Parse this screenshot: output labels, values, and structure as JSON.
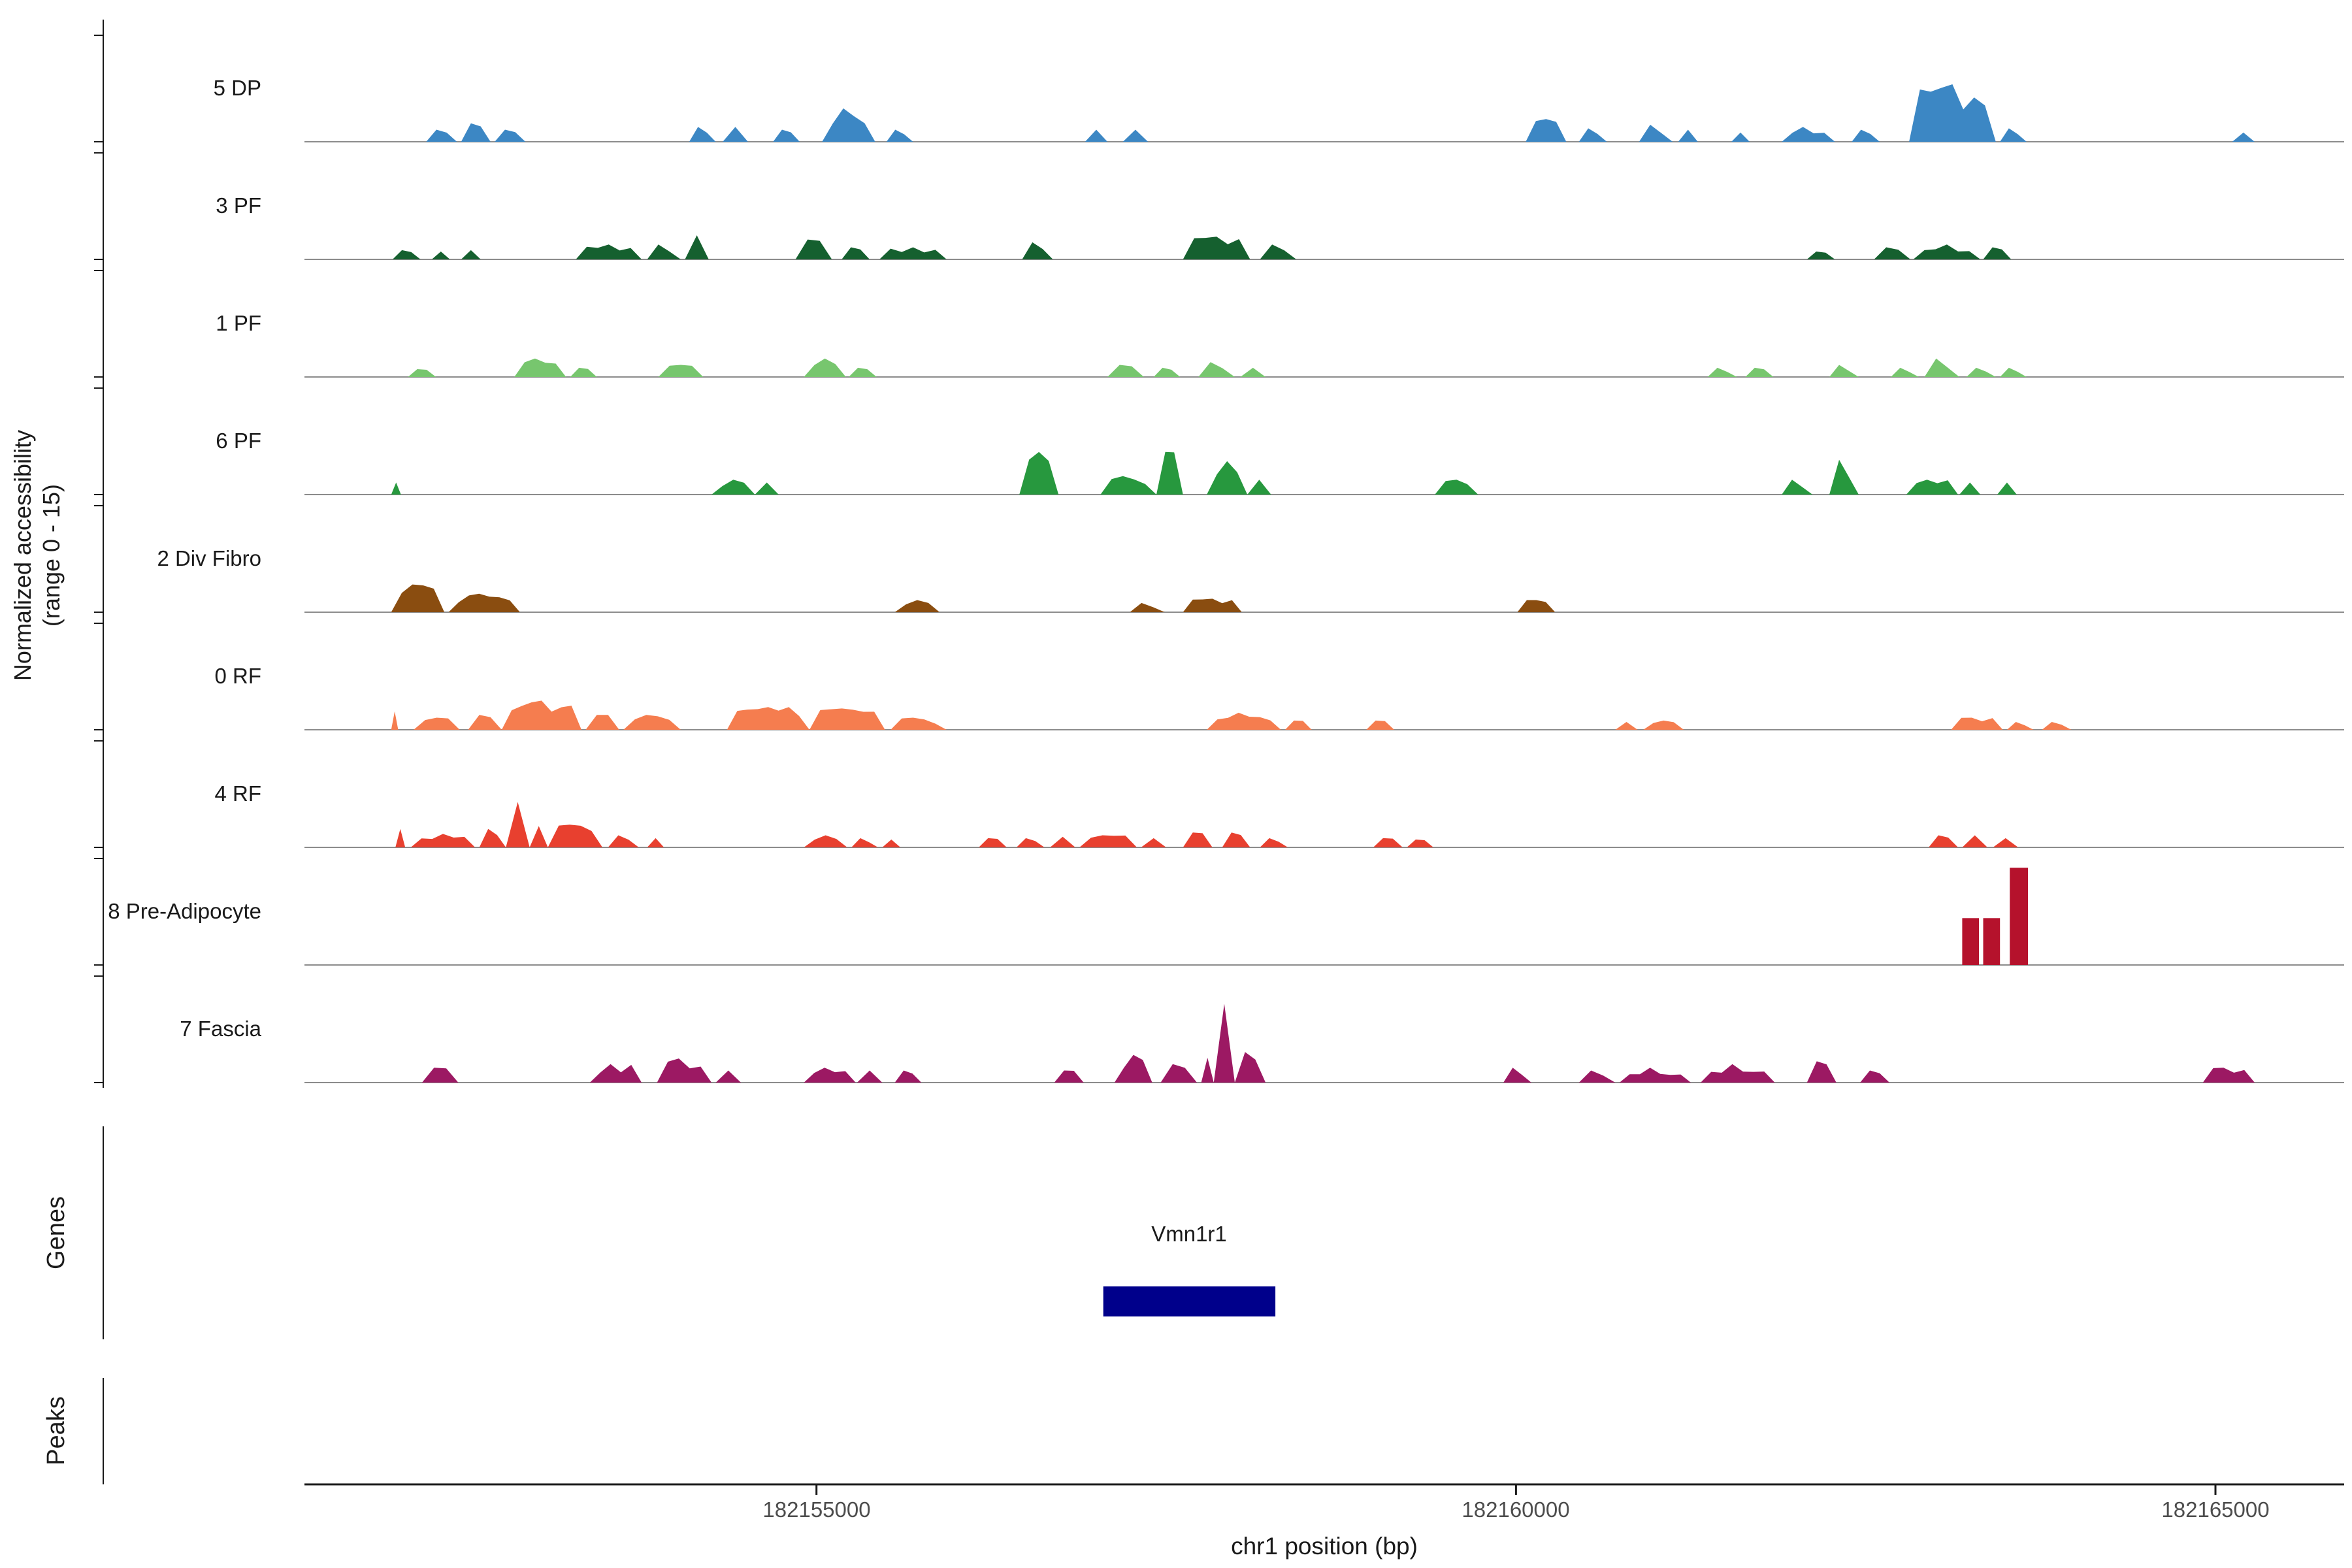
{
  "chart_data": {
    "type": "area",
    "title": "",
    "x_axis": {
      "label": "chr1 position (bp)",
      "min": 182151340,
      "max": 182165920,
      "ticks": [
        182155000,
        182160000,
        182165000
      ],
      "tick_labels": [
        "182155000",
        "182160000",
        "182165000"
      ]
    },
    "y_axis": {
      "label": "Normalized accessibility (range 0 - 15)",
      "label_lines": [
        "Normalized accessibility",
        "(range 0 - 15)"
      ],
      "per_track_range": [
        0,
        15
      ]
    },
    "colors": {
      "axis": "#1a1a1a",
      "baseline": "#8c8c8c"
    },
    "tracks": [
      {
        "label": "5 DP",
        "color": "#3c87c4",
        "style": "ragged",
        "segments": [
          [
            182152210,
            182152430,
            1.7
          ],
          [
            182152460,
            182152670,
            2.6
          ],
          [
            182152700,
            182152920,
            1.7
          ],
          [
            182154090,
            182154280,
            2.1
          ],
          [
            182154330,
            182154510,
            2.1
          ],
          [
            182154690,
            182154880,
            1.7
          ],
          [
            182155040,
            182155420,
            4.7
          ],
          [
            182155500,
            182155690,
            1.7
          ],
          [
            182156920,
            182157080,
            1.7
          ],
          [
            182157190,
            182157370,
            1.7
          ],
          [
            182160070,
            182160360,
            3.2
          ],
          [
            182160450,
            182160650,
            1.9
          ],
          [
            182160880,
            182161120,
            2.4
          ],
          [
            182161160,
            182161300,
            1.7
          ],
          [
            182161540,
            182161670,
            1.3
          ],
          [
            182161900,
            182162280,
            2.1
          ],
          [
            182162400,
            182162600,
            1.7
          ],
          [
            182162810,
            182163430,
            8.1
          ],
          [
            182163460,
            182163650,
            1.9
          ],
          [
            182165120,
            182165280,
            1.3
          ]
        ]
      },
      {
        "label": "3 PF",
        "color": "#15602f",
        "style": "ragged",
        "segments": [
          [
            182151970,
            182152170,
            1.3
          ],
          [
            182152250,
            182152380,
            1.1
          ],
          [
            182152460,
            182152600,
            1.3
          ],
          [
            182153280,
            182153750,
            2.1
          ],
          [
            182153790,
            182154030,
            2.1
          ],
          [
            182154060,
            182154230,
            3.4
          ],
          [
            182154850,
            182155110,
            2.8
          ],
          [
            182155180,
            182155380,
            1.7
          ],
          [
            182155450,
            182155930,
            1.7
          ],
          [
            182156470,
            182156690,
            2.4
          ],
          [
            182157620,
            182158100,
            3.2
          ],
          [
            182158170,
            182158430,
            2.1
          ],
          [
            182162080,
            182162280,
            1.1
          ],
          [
            182162560,
            182162820,
            1.7
          ],
          [
            182162840,
            182163320,
            2.1
          ],
          [
            182163340,
            182163540,
            1.7
          ]
        ]
      },
      {
        "label": "1 PF",
        "color": "#77c66e",
        "style": "ragged",
        "segments": [
          [
            182152080,
            182152280,
            1.1
          ],
          [
            182152840,
            182153210,
            2.6
          ],
          [
            182153240,
            182153430,
            1.3
          ],
          [
            182153870,
            182154190,
            1.7
          ],
          [
            182154910,
            182155210,
            2.6
          ],
          [
            182155230,
            182155430,
            1.3
          ],
          [
            182157080,
            182157340,
            1.7
          ],
          [
            182157410,
            182157600,
            1.3
          ],
          [
            182157730,
            182157990,
            2.1
          ],
          [
            182158030,
            182158210,
            1.3
          ],
          [
            182161370,
            182161580,
            1.3
          ],
          [
            182161640,
            182161840,
            1.3
          ],
          [
            182162240,
            182162450,
            1.7
          ],
          [
            182162680,
            182162880,
            1.3
          ],
          [
            182162920,
            182163170,
            2.6
          ],
          [
            182163220,
            182163430,
            1.3
          ],
          [
            182163460,
            182163650,
            1.3
          ]
        ]
      },
      {
        "label": "6 PF",
        "color": "#27983e",
        "style": "ragged",
        "segments": [
          [
            182151960,
            182152030,
            1.7
          ],
          [
            182154250,
            182154560,
            2.1
          ],
          [
            182154560,
            182154730,
            1.7
          ],
          [
            182156450,
            182156730,
            6.0
          ],
          [
            182157030,
            182157430,
            2.6
          ],
          [
            182157430,
            182157620,
            6.0
          ],
          [
            182157790,
            182158080,
            4.7
          ],
          [
            182158080,
            182158250,
            2.1
          ],
          [
            182159420,
            182159730,
            2.1
          ],
          [
            182161900,
            182162120,
            2.1
          ],
          [
            182162240,
            182162450,
            4.9
          ],
          [
            182162790,
            182163160,
            2.1
          ],
          [
            182163170,
            182163320,
            1.7
          ],
          [
            182163440,
            182163580,
            1.7
          ]
        ]
      },
      {
        "label": "2 Div Fibro",
        "color": "#8a4d10",
        "style": "ragged",
        "segments": [
          [
            182151960,
            182152340,
            3.9
          ],
          [
            182152370,
            182152880,
            2.6
          ],
          [
            182155560,
            182155880,
            1.7
          ],
          [
            182157240,
            182157490,
            1.3
          ],
          [
            182157620,
            182158040,
            1.9
          ],
          [
            182160010,
            182160280,
            1.7
          ]
        ]
      },
      {
        "label": "0 RF",
        "color": "#f57d4f",
        "style": "ragged",
        "segments": [
          [
            182151960,
            182152010,
            2.6
          ],
          [
            182152120,
            182152450,
            1.7
          ],
          [
            182152510,
            182152750,
            2.1
          ],
          [
            182152750,
            182153320,
            4.1
          ],
          [
            182153350,
            182153590,
            2.1
          ],
          [
            182153620,
            182154030,
            2.1
          ],
          [
            182154360,
            182154950,
            3.2
          ],
          [
            182154950,
            182155490,
            3.0
          ],
          [
            182155530,
            182155930,
            1.7
          ],
          [
            182157790,
            182158320,
            2.4
          ],
          [
            182158350,
            182158540,
            1.3
          ],
          [
            182158930,
            182159130,
            1.3
          ],
          [
            182160710,
            182160870,
            1.1
          ],
          [
            182160910,
            182161200,
            1.3
          ],
          [
            182163110,
            182163480,
            1.7
          ],
          [
            182163510,
            182163700,
            1.1
          ],
          [
            182163760,
            182163970,
            1.1
          ]
        ]
      },
      {
        "label": "4 RF",
        "color": "#e8402f",
        "style": "ragged",
        "segments": [
          [
            182151990,
            182152060,
            2.6
          ],
          [
            182152100,
            182152560,
            1.9
          ],
          [
            182152590,
            182152780,
            2.6
          ],
          [
            182152780,
            182152950,
            6.4
          ],
          [
            182152950,
            182153080,
            3.0
          ],
          [
            182153080,
            182153470,
            3.2
          ],
          [
            182153510,
            182153730,
            1.7
          ],
          [
            182153790,
            182153910,
            1.3
          ],
          [
            182154910,
            182155220,
            1.7
          ],
          [
            182155250,
            182155440,
            1.3
          ],
          [
            182155470,
            182155600,
            1.1
          ],
          [
            182156160,
            182156360,
            1.3
          ],
          [
            182156430,
            182156630,
            1.3
          ],
          [
            182156670,
            182156850,
            1.5
          ],
          [
            182156880,
            182157290,
            1.7
          ],
          [
            182157320,
            182157500,
            1.3
          ],
          [
            182157620,
            182157830,
            2.1
          ],
          [
            182157900,
            182158100,
            2.1
          ],
          [
            182158170,
            182158370,
            1.3
          ],
          [
            182158980,
            182159190,
            1.3
          ],
          [
            182159220,
            182159410,
            1.1
          ],
          [
            182162950,
            182163160,
            1.7
          ],
          [
            182163190,
            182163370,
            1.7
          ],
          [
            182163410,
            182163590,
            1.3
          ]
        ]
      },
      {
        "label": "8 Pre-Adipocyte",
        "color": "#b5122c",
        "style": "bar",
        "segments": [
          [
            182163190,
            182163310,
            6.6
          ],
          [
            182163340,
            182163460,
            6.6
          ],
          [
            182163530,
            182163660,
            13.7
          ]
        ]
      },
      {
        "label": "7 Fascia",
        "color": "#9c1963",
        "style": "ragged",
        "segments": [
          [
            182152180,
            182152440,
            2.1
          ],
          [
            182153380,
            182153750,
            2.6
          ],
          [
            182153860,
            182154250,
            3.4
          ],
          [
            182154280,
            182154460,
            1.7
          ],
          [
            182154910,
            182155280,
            2.1
          ],
          [
            182155290,
            182155470,
            1.7
          ],
          [
            182155560,
            182155750,
            1.7
          ],
          [
            182156700,
            182156910,
            1.7
          ],
          [
            182157130,
            182157400,
            3.9
          ],
          [
            182157460,
            182157720,
            2.6
          ],
          [
            182157750,
            182157840,
            3.5
          ],
          [
            182157840,
            182157990,
            11.1
          ],
          [
            182157990,
            182158210,
            4.3
          ],
          [
            182159910,
            182160110,
            2.1
          ],
          [
            182160450,
            182160710,
            1.7
          ],
          [
            182160740,
            182161250,
            2.1
          ],
          [
            182161320,
            182161850,
            2.6
          ],
          [
            182162080,
            182162290,
            3.0
          ],
          [
            182162460,
            182162670,
            1.7
          ],
          [
            182164910,
            182165280,
            2.1
          ]
        ]
      }
    ],
    "gene_track": {
      "label": "Genes",
      "genes": [
        {
          "name": "Vmn1r1",
          "start": 182157050,
          "end": 182158280,
          "color": "#00008b"
        }
      ]
    },
    "peak_track": {
      "label": "Peaks",
      "peaks": []
    }
  }
}
